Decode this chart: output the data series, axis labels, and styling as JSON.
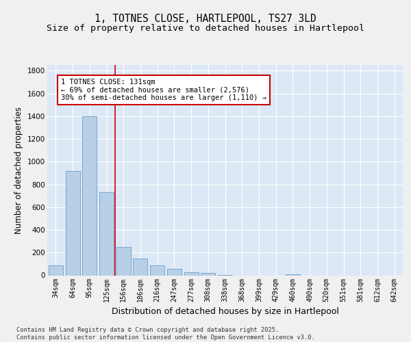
{
  "title": "1, TOTNES CLOSE, HARTLEPOOL, TS27 3LD",
  "subtitle": "Size of property relative to detached houses in Hartlepool",
  "xlabel": "Distribution of detached houses by size in Hartlepool",
  "ylabel": "Number of detached properties",
  "categories": [
    "34sqm",
    "64sqm",
    "95sqm",
    "125sqm",
    "156sqm",
    "186sqm",
    "216sqm",
    "247sqm",
    "277sqm",
    "308sqm",
    "338sqm",
    "368sqm",
    "399sqm",
    "429sqm",
    "460sqm",
    "490sqm",
    "520sqm",
    "551sqm",
    "581sqm",
    "612sqm",
    "642sqm"
  ],
  "values": [
    90,
    920,
    1400,
    730,
    250,
    150,
    90,
    55,
    25,
    20,
    5,
    0,
    0,
    0,
    10,
    0,
    0,
    0,
    0,
    0,
    0
  ],
  "bar_color": "#b8cfe8",
  "bar_edge_color": "#5a8fc4",
  "bar_width": 0.85,
  "ylim": [
    0,
    1850
  ],
  "yticks": [
    0,
    200,
    400,
    600,
    800,
    1000,
    1200,
    1400,
    1600,
    1800
  ],
  "vline_color": "#cc0000",
  "annotation_text": "1 TOTNES CLOSE: 131sqm\n← 69% of detached houses are smaller (2,576)\n30% of semi-detached houses are larger (1,110) →",
  "annotation_box_color": "#cc0000",
  "background_color": "#dce8f5",
  "grid_color": "#ffffff",
  "fig_background": "#f0f0f0",
  "footer_text": "Contains HM Land Registry data © Crown copyright and database right 2025.\nContains public sector information licensed under the Open Government Licence v3.0.",
  "title_fontsize": 10.5,
  "subtitle_fontsize": 9.5,
  "axis_label_fontsize": 8.5,
  "tick_fontsize": 7,
  "annotation_fontsize": 7.5,
  "footer_fontsize": 6.2
}
